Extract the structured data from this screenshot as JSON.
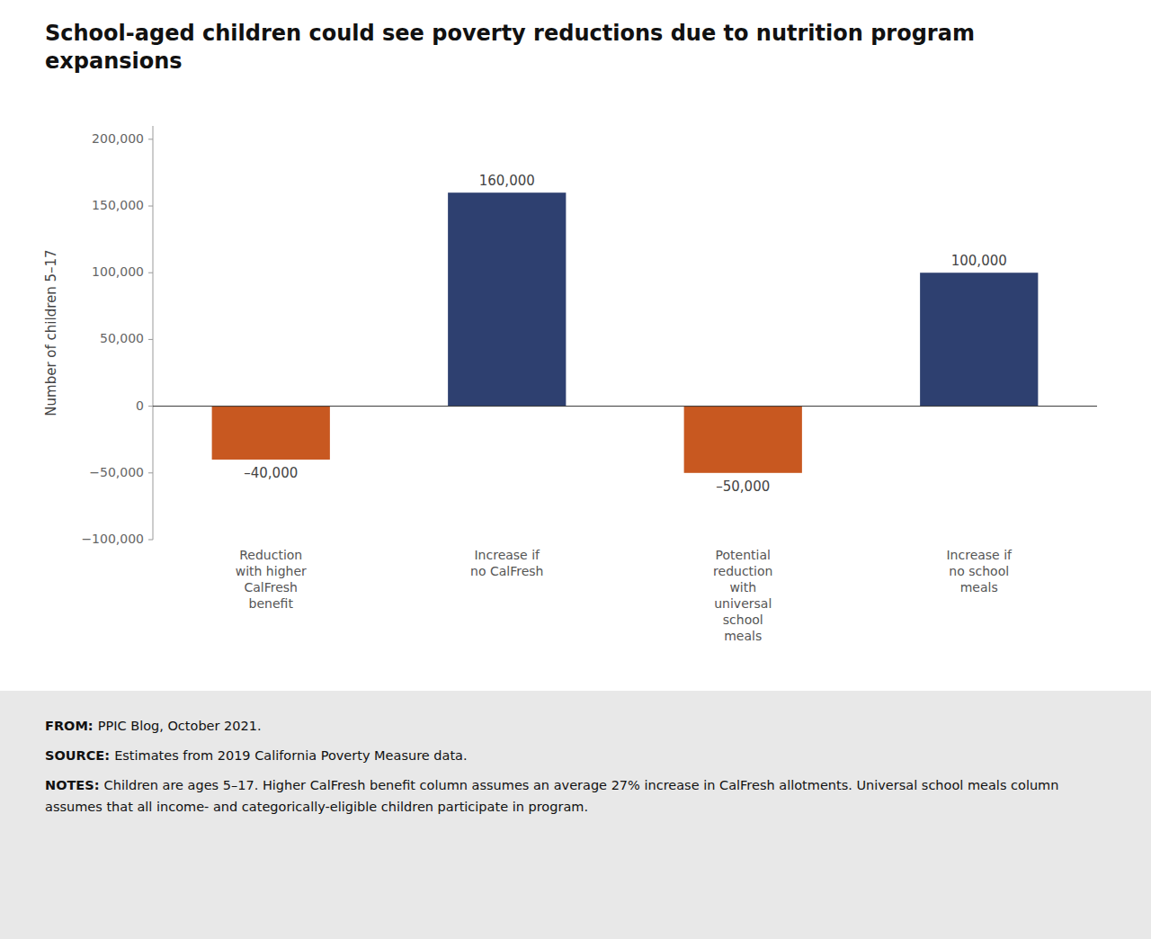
{
  "chart_data": {
    "type": "bar",
    "title": "School-aged children could see poverty reductions due to nutrition program expansions",
    "y_label": "Number of children 5–17",
    "categories": [
      "Reduction\nwith higher\nCalFresh\nbenefit",
      "Increase if\nno CalFresh",
      "Potential\nreduction\nwith\nuniversal\nschool\nmeals",
      "Increase if\nno school\nmeals"
    ],
    "values": [
      -40000,
      160000,
      -50000,
      100000
    ],
    "value_labels": [
      "–40,000",
      "160,000",
      "–50,000",
      "100,000"
    ],
    "data_labels": true,
    "colors": [
      "#C85820",
      "#2E4070",
      "#C85820",
      "#2E4070"
    ],
    "ylim": [
      -100000,
      210000
    ],
    "yticks": [
      {
        "value": -100000,
        "label": "−100,000"
      },
      {
        "value": -50000,
        "label": "−50,000"
      },
      0,
      {
        "value": 50000,
        "label": "50,000"
      },
      {
        "value": 100000,
        "label": "100,000"
      },
      {
        "value": 150000,
        "label": "150,000"
      },
      {
        "value": 200000,
        "label": "200,000"
      }
    ],
    "grid": false,
    "annotations": [
      {
        "label": "FROM:",
        "text": "PPIC Blog, October 2021."
      },
      {
        "label": "SOURCE:",
        "text": "Estimates from 2019 California Poverty Measure data."
      },
      {
        "label": "NOTES:",
        "text": "Children are ages 5–17. Higher CalFresh benefit column assumes an average 27% increase in CalFresh allotments. Universal school meals column assumes that all income- and categorically-eligible children participate in program."
      }
    ]
  }
}
